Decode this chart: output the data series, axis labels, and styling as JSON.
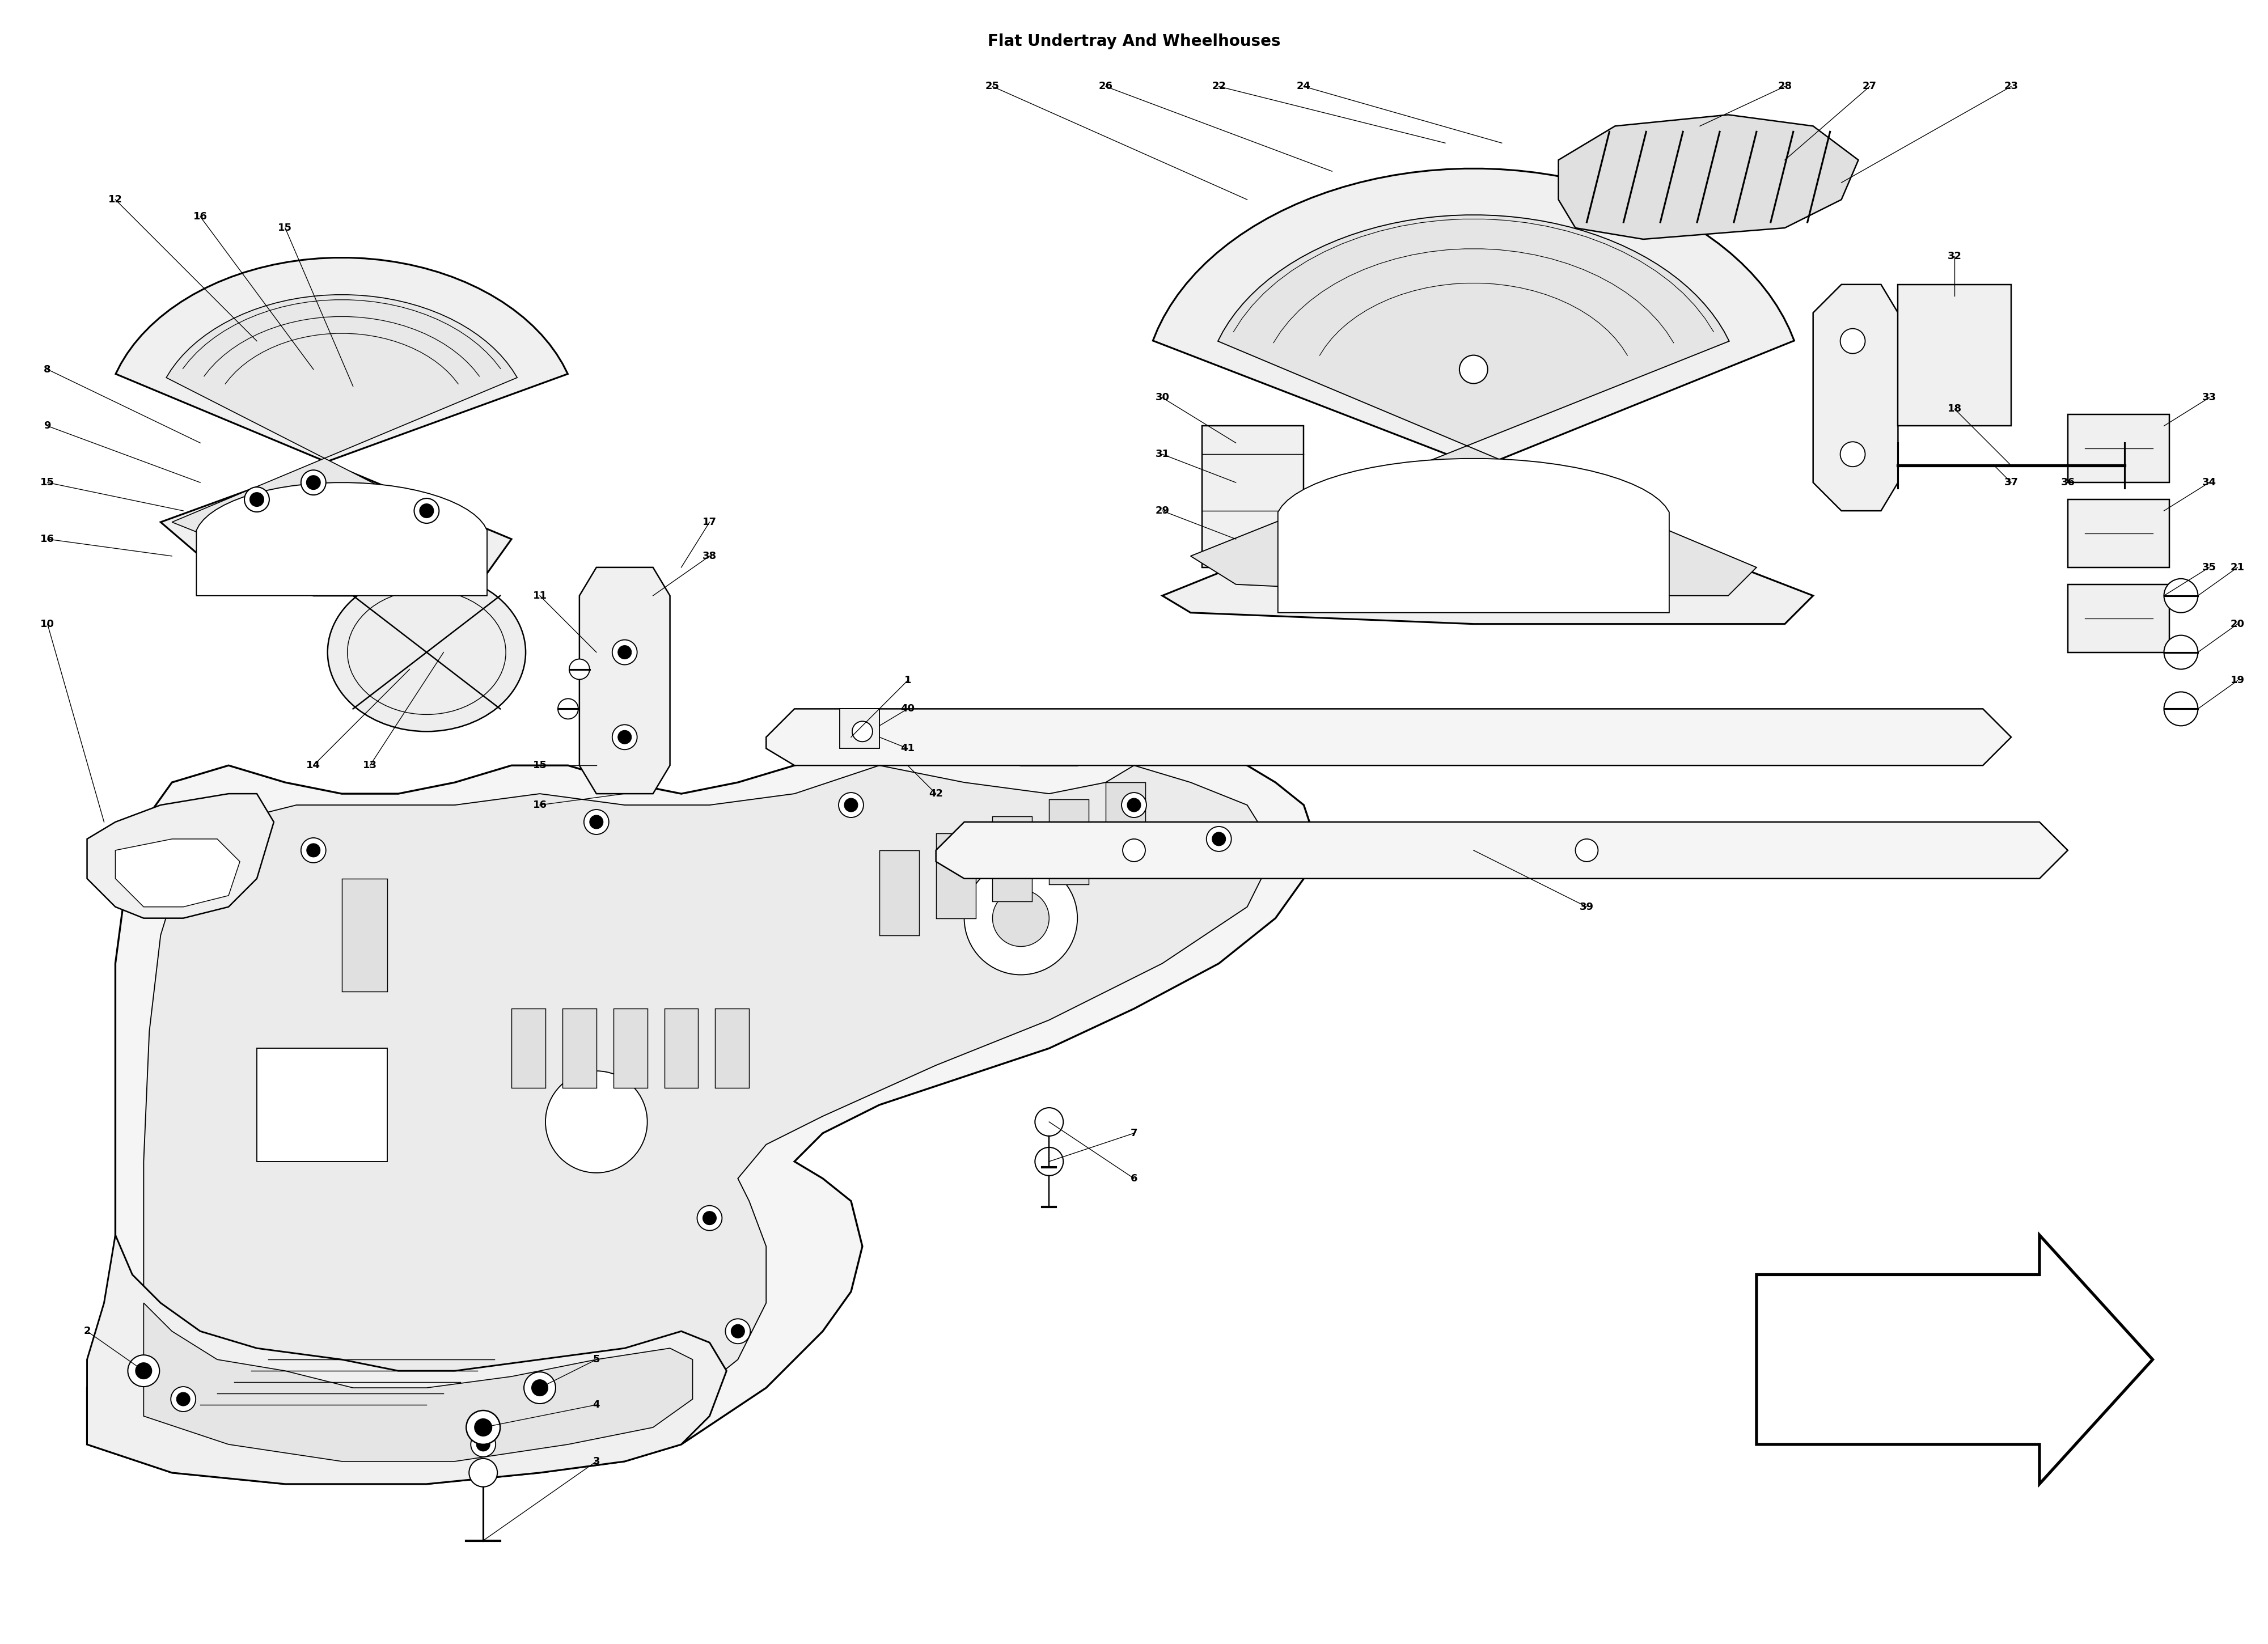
{
  "title": "Flat Undertray And Wheelhouses",
  "bg_color": "#ffffff",
  "line_color": "#000000",
  "fig_width": 40,
  "fig_height": 29,
  "label_fontsize": 13,
  "title_fontsize": 20,
  "lw": 1.5
}
